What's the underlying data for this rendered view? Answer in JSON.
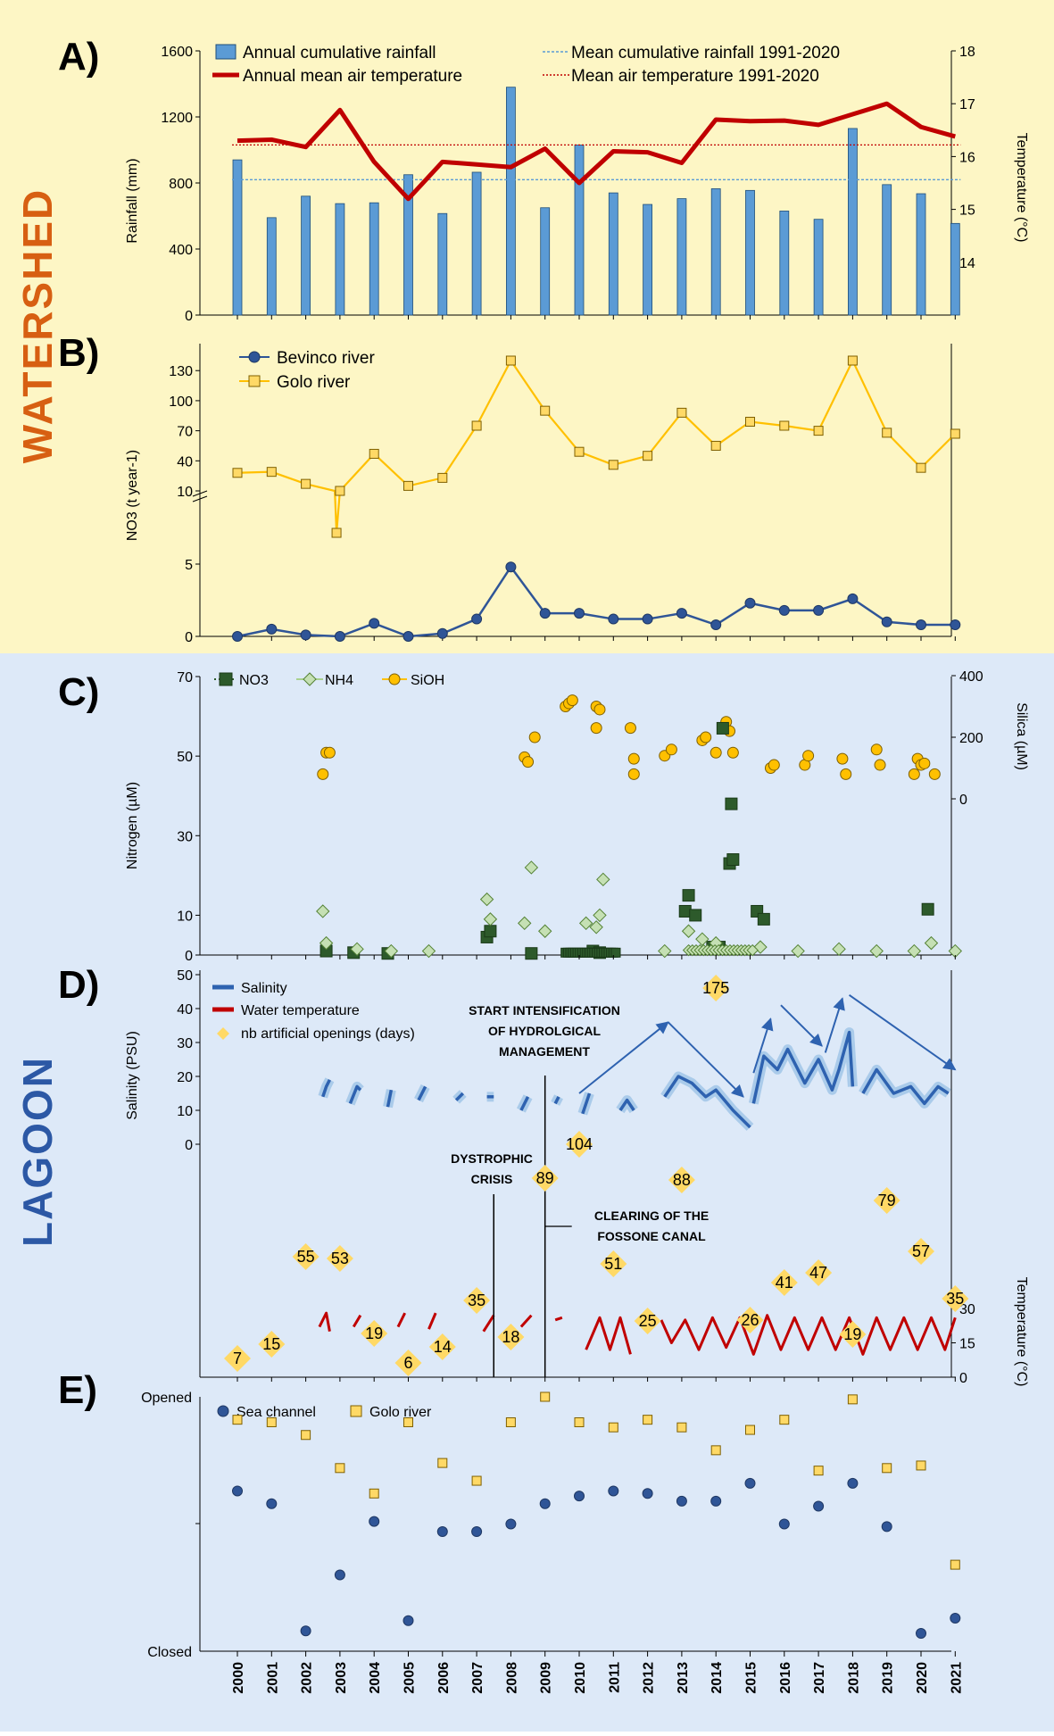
{
  "years": [
    "2000",
    "2001",
    "2002",
    "2003",
    "2004",
    "2005",
    "2006",
    "2007",
    "2008",
    "2009",
    "2010",
    "2011",
    "2012",
    "2013",
    "2014",
    "2015",
    "2016",
    "2017",
    "2018",
    "2019",
    "2020",
    "2021"
  ],
  "side_labels": {
    "watershed": "WATERSHED",
    "lagoon": "LAGOON"
  },
  "colors": {
    "watershed_bg": "#fdf6c5",
    "lagoon_bg": "#dde9f8",
    "watershed_text": "#d75f12",
    "lagoon_text": "#2c58a5",
    "rain_bar": "#5b9bd5",
    "temp_line": "#c00000",
    "bevinco": "#2f5597",
    "golo": "#ffc000",
    "no3": "#2d5a2b",
    "nh4": "#a9d18e",
    "sioh": "#ffc000",
    "salinity": "#2e62b0",
    "salinity_band": "#9dc3e6",
    "water_temp": "#c00000",
    "openings": "#ffd966",
    "sea_channel": "#2f5597"
  },
  "chart_data": [
    {
      "id": "A",
      "type": "bar+line",
      "panel_label": "A)",
      "ylabel": "Rainfall (mm)",
      "y2label": "Temperature (°C)",
      "ylim": [
        0,
        1600
      ],
      "y2lim": [
        13,
        18
      ],
      "yticks": [
        "0",
        "400",
        "800",
        "1200",
        "1600"
      ],
      "y2ticks": [
        "14",
        "15",
        "16",
        "17",
        "18"
      ],
      "legend": {
        "rain": "Annual cumulative rainfall",
        "temp": "Annual mean air temperature",
        "mean_rain": "Mean cumulative rainfall 1991-2020",
        "mean_temp": "Mean air temperature 1991-2020"
      },
      "rainfall": [
        940,
        590,
        720,
        675,
        680,
        850,
        615,
        865,
        1380,
        650,
        1030,
        740,
        670,
        705,
        765,
        755,
        630,
        580,
        1130,
        790,
        735,
        555
      ],
      "temperature": [
        16.3,
        16.32,
        16.18,
        16.88,
        15.9,
        15.2,
        15.9,
        15.85,
        15.8,
        16.15,
        15.5,
        16.1,
        16.08,
        15.88,
        16.7,
        16.67,
        16.68,
        16.6,
        16.8,
        17.0,
        16.56,
        16.38
      ],
      "mean_rainfall": 820,
      "mean_temperature": 16.22
    },
    {
      "id": "B",
      "type": "line",
      "panel_label": "B)",
      "ylabel": "NO3 (t year-1)",
      "yticks_lower": [
        "0",
        "5"
      ],
      "yticks_upper": [
        "10",
        "40",
        "70",
        "100",
        "130"
      ],
      "legend": {
        "bevinco": "Bevinco river",
        "golo": "Golo river"
      },
      "bevinco": [
        0,
        0.5,
        0.1,
        0,
        0.9,
        0,
        0.2,
        1.2,
        4.8,
        1.6,
        1.6,
        1.2,
        1.2,
        1.6,
        0.8,
        2.3,
        1.8,
        1.8,
        2.6,
        1,
        0.8,
        0.8
      ],
      "golo": [
        28,
        29,
        17,
        10,
        47,
        15,
        23,
        75,
        140,
        90,
        49,
        36,
        45,
        88,
        55,
        79,
        75,
        70,
        140,
        68,
        33,
        67
      ],
      "golo_dip": {
        "x": 2002.9,
        "value": -7
      }
    },
    {
      "id": "C",
      "type": "scatter",
      "panel_label": "C)",
      "ylabel": "Nitrogen (µM)",
      "y2label": "Silica (µM)",
      "yticks": [
        "0",
        "10",
        "30",
        "50",
        "70"
      ],
      "y2ticks": [
        "0",
        "200",
        "400"
      ],
      "legend": {
        "no3": "NO3",
        "nh4": "NH4",
        "sioh": "SiOH"
      },
      "no3": [
        [
          2002.6,
          1
        ],
        [
          2003.4,
          0.6
        ],
        [
          2004.4,
          0.4
        ],
        [
          2007.3,
          4.5
        ],
        [
          2007.4,
          6
        ],
        [
          2008.6,
          0.4
        ],
        [
          2010.4,
          1
        ],
        [
          2010.6,
          0.6
        ],
        [
          2013.1,
          11
        ],
        [
          2013.2,
          15
        ],
        [
          2013.4,
          10
        ],
        [
          2013.9,
          2
        ],
        [
          2014.1,
          2
        ],
        [
          2014.2,
          57
        ],
        [
          2014.4,
          23
        ],
        [
          2014.5,
          24
        ],
        [
          2014.45,
          38
        ],
        [
          2015.2,
          11
        ],
        [
          2015.4,
          9
        ],
        [
          2020.2,
          11.5
        ]
      ],
      "nh4": [
        [
          2002.5,
          11
        ],
        [
          2002.6,
          3
        ],
        [
          2003.5,
          1.5
        ],
        [
          2004.5,
          1
        ],
        [
          2005.6,
          1
        ],
        [
          2007.3,
          14
        ],
        [
          2007.4,
          9
        ],
        [
          2008.4,
          8
        ],
        [
          2008.6,
          22
        ],
        [
          2009.0,
          6
        ],
        [
          2010.2,
          8
        ],
        [
          2010.5,
          7
        ],
        [
          2010.6,
          10
        ],
        [
          2010.7,
          19
        ],
        [
          2012.5,
          1
        ],
        [
          2013.2,
          6
        ],
        [
          2013.6,
          4
        ],
        [
          2014.0,
          3
        ],
        [
          2015.3,
          2
        ],
        [
          2016.4,
          1
        ],
        [
          2017.6,
          1.5
        ],
        [
          2018.7,
          1
        ],
        [
          2019.8,
          1
        ],
        [
          2020.3,
          3
        ],
        [
          2021.0,
          1
        ]
      ],
      "sioh": [
        [
          2002.5,
          80
        ],
        [
          2002.6,
          150
        ],
        [
          2002.7,
          150
        ],
        [
          2008.4,
          135
        ],
        [
          2008.5,
          120
        ],
        [
          2008.7,
          200
        ],
        [
          2009.6,
          300
        ],
        [
          2009.7,
          310
        ],
        [
          2009.8,
          320
        ],
        [
          2010.5,
          300
        ],
        [
          2010.6,
          290
        ],
        [
          2010.5,
          230
        ],
        [
          2011.5,
          230
        ],
        [
          2011.6,
          130
        ],
        [
          2011.6,
          80
        ],
        [
          2012.5,
          140
        ],
        [
          2012.7,
          160
        ],
        [
          2013.6,
          190
        ],
        [
          2013.7,
          200
        ],
        [
          2014.0,
          150
        ],
        [
          2014.3,
          250
        ],
        [
          2014.4,
          220
        ],
        [
          2014.5,
          150
        ],
        [
          2015.6,
          100
        ],
        [
          2015.7,
          110
        ],
        [
          2016.6,
          110
        ],
        [
          2016.7,
          140
        ],
        [
          2017.7,
          130
        ],
        [
          2017.8,
          80
        ],
        [
          2018.7,
          160
        ],
        [
          2018.8,
          110
        ],
        [
          2019.8,
          80
        ],
        [
          2019.9,
          130
        ],
        [
          2020.0,
          110
        ],
        [
          2020.1,
          115
        ],
        [
          2020.4,
          80
        ]
      ]
    },
    {
      "id": "D",
      "type": "line+scatter",
      "panel_label": "D)",
      "ylabel": "Salinity (PSU)",
      "y2label": "Temperature (°C)",
      "yticks": [
        "0",
        "10",
        "20",
        "30",
        "40",
        "50"
      ],
      "y2ticks": [
        "0",
        "15",
        "30"
      ],
      "legend": {
        "salinity": "Salinity",
        "water_temp": "Water temperature",
        "openings": "nb artificial openings (days)"
      },
      "artificial_openings": [
        7,
        15,
        55,
        53,
        19,
        6,
        14,
        35,
        18,
        89,
        104,
        51,
        25,
        88,
        175,
        26,
        41,
        47,
        19,
        79,
        57,
        35
      ],
      "salinity_segments": [
        [
          [
            2002.5,
            14
          ],
          [
            2002.6,
            17
          ],
          [
            2002.7,
            19
          ]
        ],
        [
          [
            2003.3,
            12
          ],
          [
            2003.5,
            17
          ],
          [
            2003.6,
            16
          ]
        ],
        [
          [
            2004.4,
            11
          ],
          [
            2004.5,
            16
          ]
        ],
        [
          [
            2005.3,
            13
          ],
          [
            2005.5,
            17
          ]
        ],
        [
          [
            2006.4,
            13
          ],
          [
            2006.6,
            15
          ]
        ],
        [
          [
            2007.3,
            14
          ],
          [
            2007.5,
            14
          ]
        ],
        [
          [
            2008.3,
            10
          ],
          [
            2008.5,
            14
          ]
        ],
        [
          [
            2009.3,
            12
          ],
          [
            2009.4,
            14
          ]
        ],
        [
          [
            2010.1,
            9
          ],
          [
            2010.3,
            15
          ]
        ],
        [
          [
            2011.2,
            10
          ],
          [
            2011.4,
            13
          ],
          [
            2011.6,
            10
          ]
        ],
        [
          [
            2012.5,
            14
          ],
          [
            2012.9,
            20
          ],
          [
            2013.3,
            18
          ],
          [
            2013.7,
            14
          ],
          [
            2014.0,
            16
          ],
          [
            2014.5,
            10
          ],
          [
            2015.0,
            5
          ]
        ],
        [
          [
            2015.1,
            12
          ],
          [
            2015.4,
            26
          ],
          [
            2015.8,
            22
          ],
          [
            2016.1,
            28
          ],
          [
            2016.6,
            18
          ],
          [
            2017.0,
            25
          ],
          [
            2017.4,
            16
          ],
          [
            2017.6,
            22
          ],
          [
            2017.9,
            33
          ],
          [
            2018.0,
            17
          ]
        ],
        [
          [
            2018.3,
            15
          ],
          [
            2018.7,
            22
          ],
          [
            2019.2,
            15
          ],
          [
            2019.7,
            17
          ],
          [
            2020.1,
            12
          ],
          [
            2020.5,
            17
          ],
          [
            2020.8,
            15
          ]
        ]
      ],
      "water_temp_segments": [
        [
          [
            2002.4,
            22
          ],
          [
            2002.6,
            28
          ],
          [
            2002.7,
            20
          ]
        ],
        [
          [
            2003.4,
            22
          ],
          [
            2003.6,
            27
          ]
        ],
        [
          [
            2004.7,
            22
          ],
          [
            2004.9,
            28
          ]
        ],
        [
          [
            2005.6,
            21
          ],
          [
            2005.8,
            28
          ]
        ],
        [
          [
            2007.2,
            20
          ],
          [
            2007.5,
            27
          ]
        ],
        [
          [
            2008.3,
            22
          ],
          [
            2008.6,
            27
          ]
        ],
        [
          [
            2009.3,
            25
          ],
          [
            2009.5,
            26
          ]
        ],
        [
          [
            2010.2,
            12
          ],
          [
            2010.6,
            26
          ],
          [
            2010.9,
            12
          ],
          [
            2011.2,
            26
          ],
          [
            2011.5,
            10
          ]
        ],
        [
          [
            2012.4,
            25
          ],
          [
            2012.7,
            15
          ],
          [
            2013.1,
            25
          ],
          [
            2013.5,
            12
          ],
          [
            2013.9,
            26
          ],
          [
            2014.3,
            13
          ],
          [
            2014.7,
            26
          ],
          [
            2015.1,
            10
          ],
          [
            2015.5,
            27
          ],
          [
            2015.9,
            12
          ],
          [
            2016.3,
            26
          ],
          [
            2016.7,
            12
          ],
          [
            2017.1,
            26
          ],
          [
            2017.5,
            12
          ],
          [
            2017.9,
            26
          ],
          [
            2018.3,
            10
          ],
          [
            2018.7,
            26
          ],
          [
            2019.1,
            12
          ],
          [
            2019.5,
            26
          ],
          [
            2019.9,
            12
          ],
          [
            2020.3,
            26
          ],
          [
            2020.7,
            12
          ],
          [
            2021.0,
            26
          ]
        ]
      ],
      "annotations": {
        "intensification": [
          "START INTENSIFICATION",
          "OF HYDROLGICAL",
          "MANAGEMENT"
        ],
        "dystrophic": [
          "DYSTROPHIC",
          "CRISIS"
        ],
        "clearing": [
          "CLEARING OF THE",
          "FOSSONE CANAL"
        ]
      }
    },
    {
      "id": "E",
      "type": "scatter",
      "panel_label": "E)",
      "ylabel_top": "Opened",
      "ylabel_bottom": "Closed",
      "legend": {
        "sea": "Sea channel",
        "golo": "Golo river"
      },
      "sea_channel": [
        0.63,
        0.58,
        0.08,
        0.3,
        0.51,
        0.12,
        0.47,
        0.47,
        0.5,
        0.58,
        0.61,
        0.63,
        0.62,
        0.59,
        0.59,
        0.66,
        0.5,
        0.57,
        0.66,
        0.49,
        0.07,
        0.13
      ],
      "golo_river": [
        0.91,
        0.9,
        0.85,
        0.72,
        0.62,
        0.9,
        0.74,
        0.67,
        0.9,
        1.0,
        0.9,
        0.88,
        0.91,
        0.88,
        0.79,
        0.87,
        0.91,
        0.71,
        0.99,
        0.72,
        0.73,
        0.34
      ]
    }
  ]
}
